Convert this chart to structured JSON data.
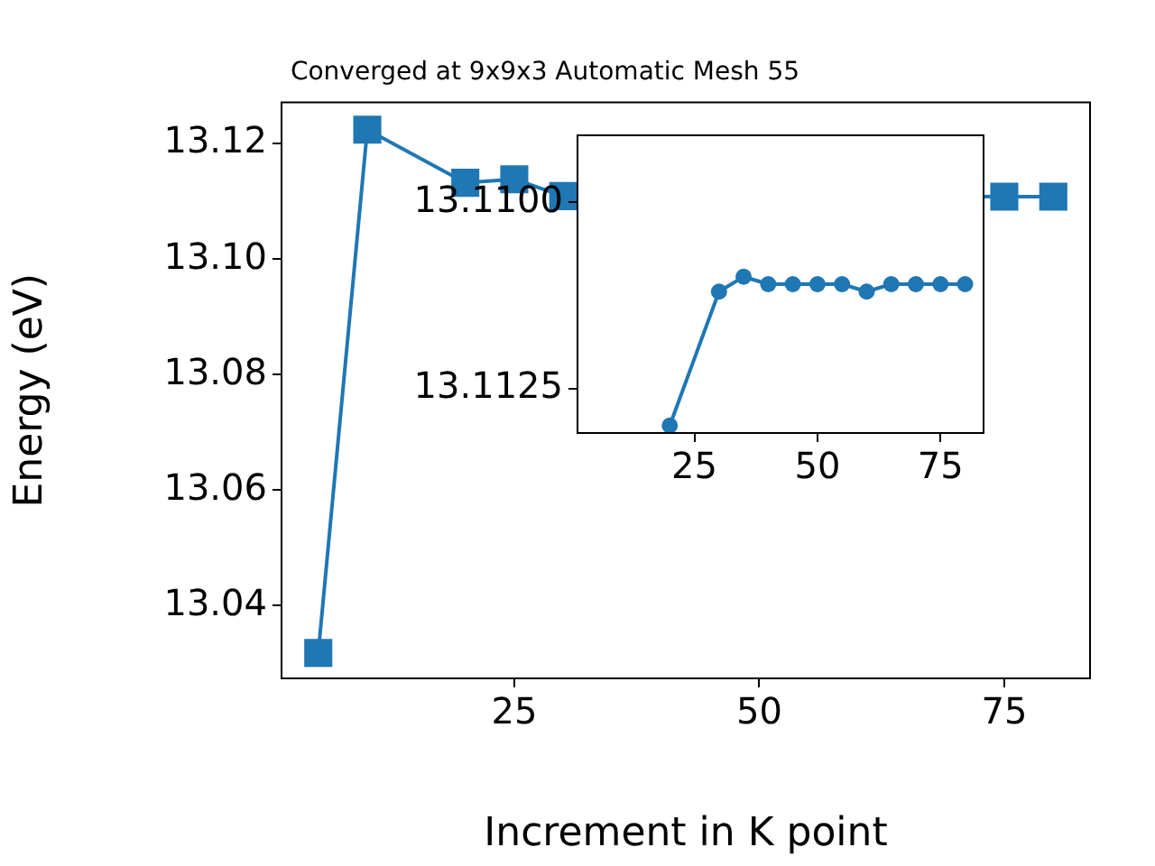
{
  "chart_data": [
    {
      "type": "line",
      "title": "Converged at 9x9x3 Automatic Mesh 55",
      "xlabel": "Increment in K point",
      "ylabel": "Energy (eV)",
      "x": [
        5,
        10,
        20,
        25,
        30,
        35,
        40,
        45,
        50,
        55,
        60,
        65,
        70,
        75,
        80
      ],
      "series": [
        {
          "color": "#1f77b4",
          "values": [
            13.0318,
            13.1224,
            13.1132,
            13.1138,
            13.1109,
            null,
            null,
            null,
            null,
            null,
            null,
            null,
            null,
            13.1108,
            13.1108
          ]
        }
      ],
      "xlim": [
        1.25,
        83.75
      ],
      "xticks": [
        25,
        50,
        75
      ],
      "ylim": [
        13.0274,
        13.1271
      ],
      "yticks": [
        {
          "value": 13.04,
          "label": "13.04"
        },
        {
          "value": 13.06,
          "label": "13.06"
        },
        {
          "value": 13.08,
          "label": "13.08"
        },
        {
          "value": 13.1,
          "label": "13.10"
        },
        {
          "value": 13.12,
          "label": "13.12"
        }
      ],
      "grid": false,
      "legend": false,
      "marker": "square",
      "line_style": "solid"
    },
    {
      "type": "line",
      "x": [
        20,
        30,
        35,
        40,
        45,
        50,
        55,
        60,
        65,
        70,
        75,
        80
      ],
      "series": [
        {
          "color": "#1f77b4",
          "values": [
            13.113,
            13.1112,
            13.111,
            13.1111,
            13.1111,
            13.1111,
            13.1111,
            13.1112,
            13.1111,
            13.1111,
            13.1111,
            13.1111
          ]
        }
      ],
      "xlim": [
        1.25,
        83.75
      ],
      "xticks": [
        25,
        50,
        75
      ],
      "ylim": [
        13.1131,
        13.1091
      ],
      "yticks": [
        {
          "value": 13.11,
          "label": "13.1100"
        },
        {
          "value": 13.1125,
          "label": "13.1125"
        }
      ],
      "grid": false,
      "legend": false,
      "marker": "circle",
      "line_style": "solid"
    }
  ]
}
